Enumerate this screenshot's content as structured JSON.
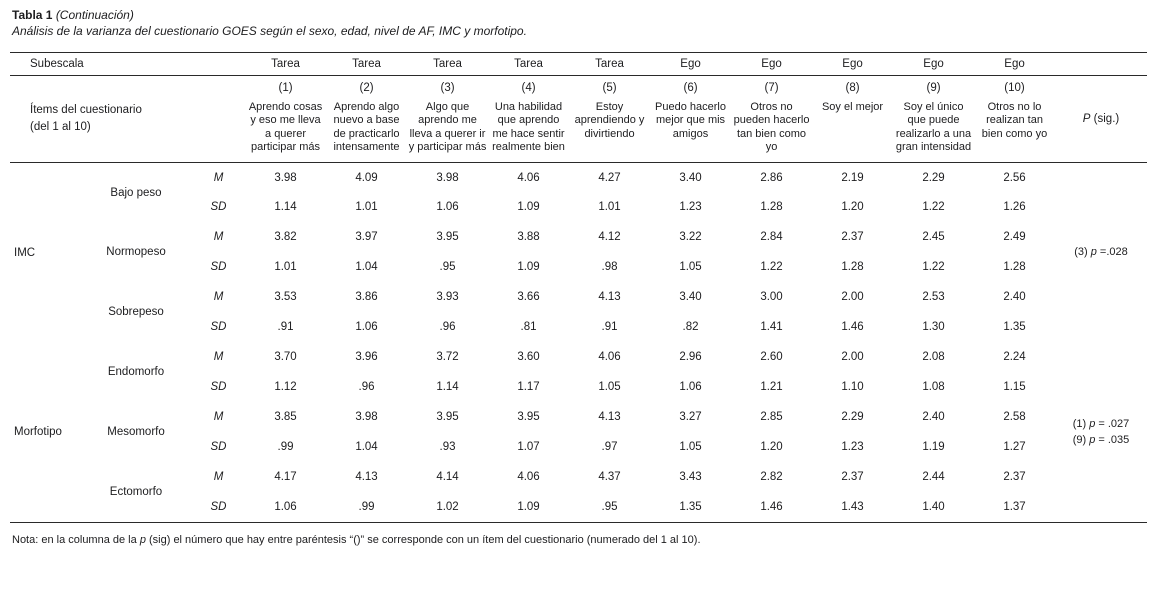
{
  "title": {
    "label": "Tabla 1",
    "continuation": "(Continuación)",
    "subtitle": "Análisis de la varianza del cuestionario GOES según el sexo, edad, nivel de AF, IMC y morfotipo."
  },
  "table": {
    "corner_header": "Subescala",
    "items_header_lines": [
      "Ítems del cuestionario",
      "(del 1 al 10)"
    ],
    "p_header": "P (sig.)",
    "stat_labels": {
      "mean": "M",
      "sd": "SD"
    },
    "columns": [
      {
        "group": "Tarea",
        "num": "(1)",
        "desc": "Aprendo cosas y eso me lleva a querer participar más"
      },
      {
        "group": "Tarea",
        "num": "(2)",
        "desc": "Aprendo algo nuevo a base de practicarlo intensamente"
      },
      {
        "group": "Tarea",
        "num": "(3)",
        "desc": "Algo que aprendo me lleva a querer ir y participar más"
      },
      {
        "group": "Tarea",
        "num": "(4)",
        "desc": "Una habilidad que aprendo me hace sentir realmente bien"
      },
      {
        "group": "Tarea",
        "num": "(5)",
        "desc": "Estoy aprendiendo y divirtiendo"
      },
      {
        "group": "Ego",
        "num": "(6)",
        "desc": "Puedo hacerlo mejor que mis amigos"
      },
      {
        "group": "Ego",
        "num": "(7)",
        "desc": "Otros no pueden hacerlo tan bien como yo"
      },
      {
        "group": "Ego",
        "num": "(8)",
        "desc": "Soy el mejor"
      },
      {
        "group": "Ego",
        "num": "(9)",
        "desc": "Soy el único que puede realizarlo a una gran intensidad"
      },
      {
        "group": "Ego",
        "num": "(10)",
        "desc": "Otros no lo realizan tan bien como yo"
      }
    ],
    "row_groups": [
      {
        "label": "IMC",
        "p_lines": [
          "(3) p =.028"
        ],
        "subgroups": [
          {
            "label": "Bajo peso",
            "M": [
              "3.98",
              "4.09",
              "3.98",
              "4.06",
              "4.27",
              "3.40",
              "2.86",
              "2.19",
              "2.29",
              "2.56"
            ],
            "SD": [
              "1.14",
              "1.01",
              "1.06",
              "1.09",
              "1.01",
              "1.23",
              "1.28",
              "1.20",
              "1.22",
              "1.26"
            ]
          },
          {
            "label": "Normopeso",
            "M": [
              "3.82",
              "3.97",
              "3.95",
              "3.88",
              "4.12",
              "3.22",
              "2.84",
              "2.37",
              "2.45",
              "2.49"
            ],
            "SD": [
              "1.01",
              "1.04",
              ".95",
              "1.09",
              ".98",
              "1.05",
              "1.22",
              "1.28",
              "1.22",
              "1.28"
            ]
          },
          {
            "label": "Sobrepeso",
            "M": [
              "3.53",
              "3.86",
              "3.93",
              "3.66",
              "4.13",
              "3.40",
              "3.00",
              "2.00",
              "2.53",
              "2.40"
            ],
            "SD": [
              ".91",
              "1.06",
              ".96",
              ".81",
              ".91",
              ".82",
              "1.41",
              "1.46",
              "1.30",
              "1.35"
            ]
          }
        ]
      },
      {
        "label": "Morfotipo",
        "p_lines": [
          "(1) p = .027",
          "(9) p = .035"
        ],
        "subgroups": [
          {
            "label": "Endomorfo",
            "M": [
              "3.70",
              "3.96",
              "3.72",
              "3.60",
              "4.06",
              "2.96",
              "2.60",
              "2.00",
              "2.08",
              "2.24"
            ],
            "SD": [
              "1.12",
              ".96",
              "1.14",
              "1.17",
              "1.05",
              "1.06",
              "1.21",
              "1.10",
              "1.08",
              "1.15"
            ]
          },
          {
            "label": "Mesomorfo",
            "M": [
              "3.85",
              "3.98",
              "3.95",
              "3.95",
              "4.13",
              "3.27",
              "2.85",
              "2.29",
              "2.40",
              "2.58"
            ],
            "SD": [
              ".99",
              "1.04",
              ".93",
              "1.07",
              ".97",
              "1.05",
              "1.20",
              "1.23",
              "1.19",
              "1.27"
            ]
          },
          {
            "label": "Ectomorfo",
            "M": [
              "4.17",
              "4.13",
              "4.14",
              "4.06",
              "4.37",
              "3.43",
              "2.82",
              "2.37",
              "2.44",
              "2.37"
            ],
            "SD": [
              "1.06",
              ".99",
              "1.02",
              "1.09",
              ".95",
              "1.35",
              "1.46",
              "1.43",
              "1.40",
              "1.37"
            ]
          }
        ]
      }
    ]
  },
  "note": "Nota: en la columna de la p (sig) el número que hay entre paréntesis “()” se corresponde con un ítem del cuestionario (numerado del 1 al 10)."
}
